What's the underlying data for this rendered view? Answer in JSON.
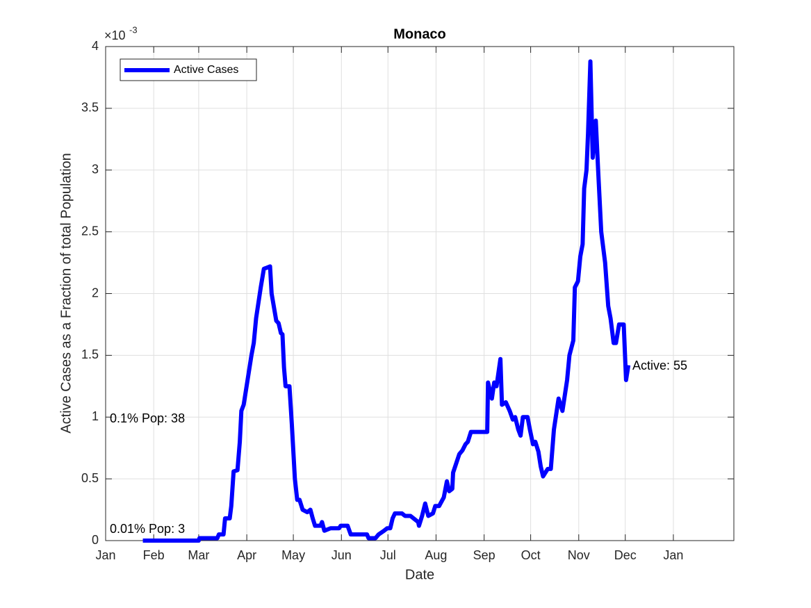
{
  "chart_data": {
    "type": "line",
    "title": "Monaco",
    "xlabel": "Date",
    "ylabel": "Active Cases as a Fraction of total Population",
    "y_multiplier": {
      "base": "×10",
      "exponent": "-3"
    },
    "xlim": [
      0,
      405
    ],
    "ylim": [
      0,
      4
    ],
    "xticks": [
      {
        "value": 0,
        "label": "Jan"
      },
      {
        "value": 31,
        "label": "Feb"
      },
      {
        "value": 60,
        "label": "Mar"
      },
      {
        "value": 91,
        "label": "Apr"
      },
      {
        "value": 121,
        "label": "May"
      },
      {
        "value": 152,
        "label": "Jun"
      },
      {
        "value": 182,
        "label": "Jul"
      },
      {
        "value": 213,
        "label": "Aug"
      },
      {
        "value": 244,
        "label": "Sep"
      },
      {
        "value": 274,
        "label": "Oct"
      },
      {
        "value": 305,
        "label": "Nov"
      },
      {
        "value": 335,
        "label": "Dec"
      },
      {
        "value": 366,
        "label": "Jan"
      }
    ],
    "yticks": [
      0,
      0.5,
      1,
      1.5,
      2,
      2.5,
      3,
      3.5,
      4
    ],
    "grid": true,
    "legend": "top-left",
    "x": [
      24,
      60,
      60.5,
      72,
      73,
      76,
      77,
      80,
      81,
      82.5,
      85,
      86.5,
      87.5,
      89,
      91.5,
      94,
      95.5,
      97,
      100,
      102,
      106,
      107,
      110,
      111.5,
      113,
      114,
      115,
      116,
      118.5,
      120,
      122,
      123.5,
      125,
      127,
      130,
      132,
      133.5,
      135,
      138.5,
      139.5,
      141,
      145,
      150.5,
      151.5,
      156,
      158,
      168.5,
      169.5,
      174,
      176,
      179.5,
      181.5,
      183.5,
      185,
      186.5,
      191,
      193,
      196.5,
      199.5,
      201.5,
      202,
      204,
      206,
      208,
      211,
      212.5,
      215,
      218,
      220,
      221.5,
      223.5,
      224,
      228,
      230,
      232,
      233.5,
      235.5,
      246,
      246.5,
      249,
      250.5,
      252,
      254.5,
      255.5,
      258,
      260.5,
      262.5,
      264,
      266,
      267.5,
      269,
      272,
      273.5,
      275.5,
      277,
      279,
      280.5,
      282,
      285,
      287,
      289,
      292,
      294.5,
      297.5,
      299,
      301.5,
      302.5,
      304.5,
      306,
      307.5,
      308.5,
      310,
      311,
      312.5,
      314,
      316,
      317.5,
      319.5,
      322,
      324,
      325.5,
      327.5,
      329,
      331,
      334,
      335.5,
      337
    ],
    "series": [
      {
        "name": "Active Cases",
        "color": "#0000ff",
        "values": [
          0,
          0,
          0.02,
          0.02,
          0.05,
          0.05,
          0.18,
          0.18,
          0.28,
          0.56,
          0.57,
          0.8,
          1.05,
          1.1,
          1.3,
          1.5,
          1.6,
          1.8,
          2.05,
          2.2,
          2.22,
          2.0,
          1.78,
          1.76,
          1.68,
          1.67,
          1.4,
          1.25,
          1.25,
          0.95,
          0.5,
          0.33,
          0.33,
          0.25,
          0.23,
          0.25,
          0.18,
          0.12,
          0.12,
          0.15,
          0.08,
          0.1,
          0.1,
          0.12,
          0.12,
          0.05,
          0.05,
          0.02,
          0.02,
          0.05,
          0.08,
          0.1,
          0.1,
          0.18,
          0.22,
          0.22,
          0.2,
          0.2,
          0.17,
          0.15,
          0.12,
          0.2,
          0.3,
          0.2,
          0.22,
          0.28,
          0.28,
          0.35,
          0.48,
          0.4,
          0.42,
          0.55,
          0.7,
          0.73,
          0.78,
          0.8,
          0.88,
          0.88,
          1.28,
          1.15,
          1.28,
          1.25,
          1.47,
          1.1,
          1.12,
          1.05,
          0.98,
          1.0,
          0.9,
          0.85,
          1.0,
          1.0,
          0.9,
          0.78,
          0.8,
          0.72,
          0.6,
          0.52,
          0.58,
          0.58,
          0.9,
          1.15,
          1.05,
          1.3,
          1.5,
          1.62,
          2.05,
          2.1,
          2.3,
          2.4,
          2.85,
          3.0,
          3.3,
          3.88,
          3.1,
          3.4,
          3.0,
          2.5,
          2.25,
          1.9,
          1.8,
          1.6,
          1.6,
          1.75,
          1.75,
          1.3,
          1.42
        ]
      }
    ],
    "annotations": [
      "0.01% Pop: 3",
      "0.1% Pop: 38",
      "Active: 55"
    ]
  }
}
